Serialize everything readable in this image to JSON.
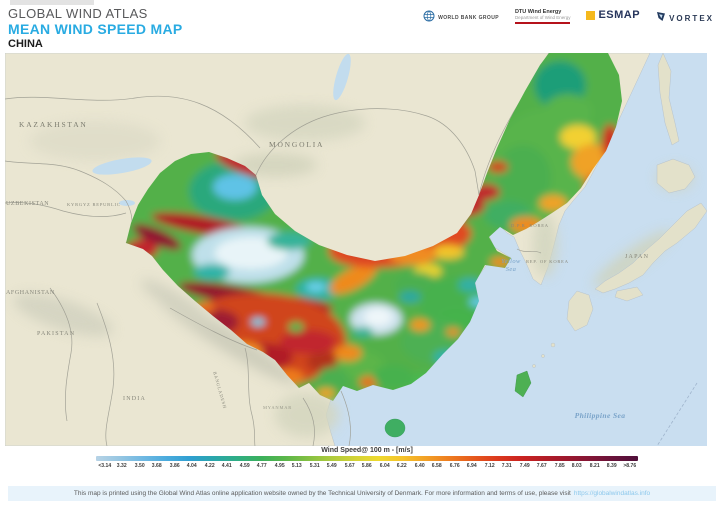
{
  "header": {
    "app_title": "GLOBAL WIND ATLAS",
    "map_title": "MEAN WIND SPEED MAP",
    "region": "CHINA",
    "accent_color": "#29abe2"
  },
  "logos": {
    "world_bank": "WORLD BANK GROUP",
    "dtu_line1": "DTU Wind Energy",
    "dtu_line2": "Department of Wind Energy",
    "esmap": "ESMAP",
    "vortex": "VORTEX"
  },
  "map": {
    "country_labels": [
      {
        "text": "KAZAKHSTAN"
      },
      {
        "text": "MONGOLIA"
      },
      {
        "text": "UZBEKISTAN"
      },
      {
        "text": "KYRGYZ REPUBLIC"
      },
      {
        "text": "AFGHANISTAN"
      },
      {
        "text": "PAKISTAN"
      },
      {
        "text": "INDIA"
      },
      {
        "text": "MYANMAR"
      },
      {
        "text": "BANGLADESH"
      },
      {
        "text": "D.P.R. KOREA"
      },
      {
        "text": "REP. OF KOREA"
      },
      {
        "text": "JAPAN"
      }
    ],
    "sea_labels": [
      {
        "text": "Yellow Sea"
      },
      {
        "text": "Philippine Sea"
      }
    ]
  },
  "legend": {
    "title": "Wind Speed@ 100 m - [m/s]",
    "ticks": [
      "<3.14",
      "3.32",
      "3.50",
      "3.68",
      "3.86",
      "4.04",
      "4.22",
      "4.41",
      "4.59",
      "4.77",
      "4.95",
      "5.13",
      "5.31",
      "5.49",
      "5.67",
      "5.86",
      "6.04",
      "6.22",
      "6.40",
      "6.58",
      "6.76",
      "6.94",
      "7.12",
      "7.31",
      "7.49",
      "7.67",
      "7.85",
      "8.03",
      "8.21",
      "8.39",
      ">8.76"
    ],
    "colors": [
      "#b7d3e6",
      "#96c6e2",
      "#6fb8e2",
      "#4aabdd",
      "#2f9fd1",
      "#2aa6ab",
      "#2fae84",
      "#3bb05c",
      "#59b64a",
      "#83c043",
      "#aecb3d",
      "#d3d336",
      "#eed92f",
      "#f5c32b",
      "#f2a026",
      "#ee7d20",
      "#e65a1d",
      "#dc3a1e",
      "#cb2420",
      "#b41d27",
      "#9c182e",
      "#821536",
      "#67123a",
      "#4f0f3a"
    ]
  },
  "footer": {
    "text": "This map is printed using the Global Wind Atlas online application website owned by the Technical University of Denmark. For more information and terms of use, please visit",
    "link": "https://globalwindatlas.info"
  }
}
